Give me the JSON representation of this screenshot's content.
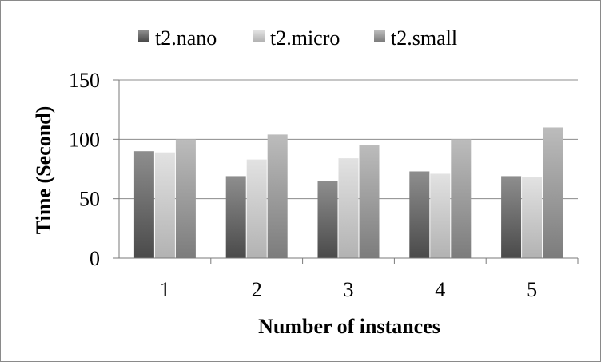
{
  "chart_data": {
    "type": "bar",
    "title": "",
    "xlabel": "Number of instances",
    "ylabel": "Time (Second)",
    "categories": [
      "1",
      "2",
      "3",
      "4",
      "5"
    ],
    "series": [
      {
        "name": "t2.nano",
        "values": [
          90,
          69,
          65,
          73,
          69
        ],
        "color": "#6a6a6a"
      },
      {
        "name": "t2.micro",
        "values": [
          89,
          83,
          84,
          71,
          68
        ],
        "color": "#c8c8c8"
      },
      {
        "name": "t2.small",
        "values": [
          100,
          104,
          95,
          100,
          110
        ],
        "color": "#9e9e9e"
      }
    ],
    "ylim": [
      0,
      150
    ],
    "yticks": [
      "0",
      "50",
      "100",
      "150"
    ],
    "grid": true,
    "legend_position": "top"
  }
}
